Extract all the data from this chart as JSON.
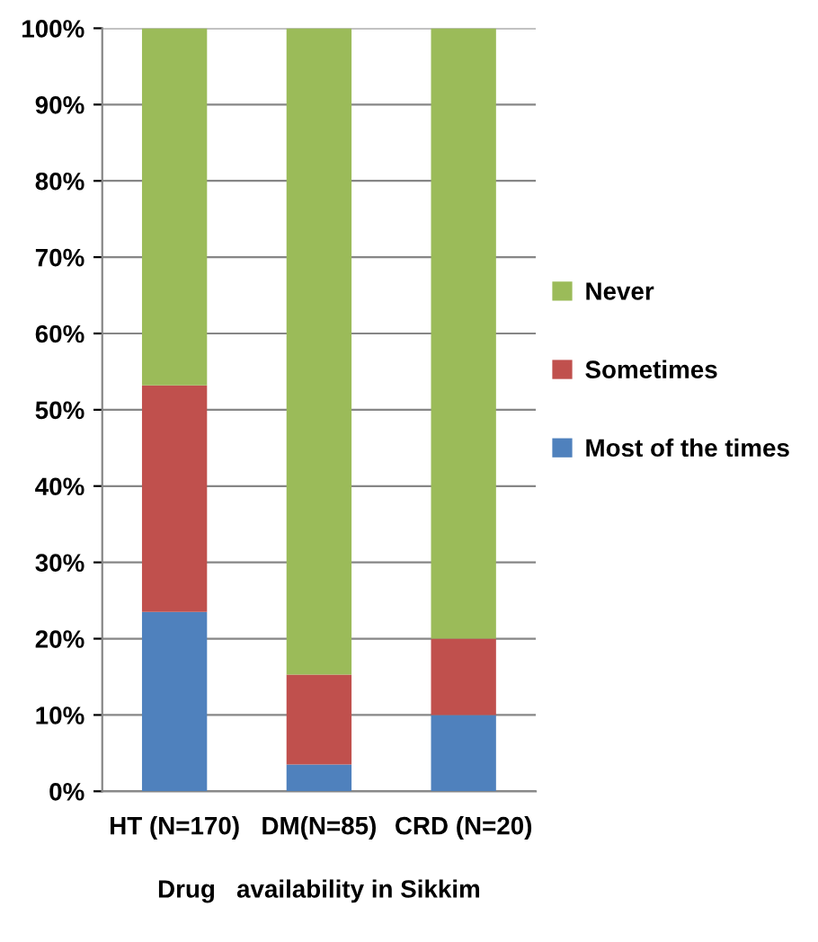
{
  "chart_data": {
    "type": "bar",
    "stacked": true,
    "xlabel": "Drug   availability in Sikkim",
    "categories": [
      "HT (N=170)",
      "DM(N=85)",
      "CRD (N=20)"
    ],
    "series": [
      {
        "name": "Most of the times",
        "color": "#4f81bd",
        "values": [
          23.5,
          3.5,
          10
        ]
      },
      {
        "name": "Sometimes",
        "color": "#c0504d",
        "values": [
          29.7,
          11.8,
          10
        ]
      },
      {
        "name": "Never",
        "color": "#9bbb59",
        "values": [
          46.8,
          84.7,
          80
        ]
      }
    ],
    "ylim": [
      0,
      100
    ],
    "yticks": [
      {
        "value": 0,
        "label": "0%"
      },
      {
        "value": 10,
        "label": "10%"
      },
      {
        "value": 20,
        "label": "20%"
      },
      {
        "value": 30,
        "label": "30%"
      },
      {
        "value": 40,
        "label": "40%"
      },
      {
        "value": 50,
        "label": "50%"
      },
      {
        "value": 60,
        "label": "60%"
      },
      {
        "value": 70,
        "label": "70%"
      },
      {
        "value": 80,
        "label": "80%"
      },
      {
        "value": 90,
        "label": "90%"
      },
      {
        "value": 100,
        "label": "100%"
      }
    ],
    "grid": "y",
    "legend": "right"
  }
}
